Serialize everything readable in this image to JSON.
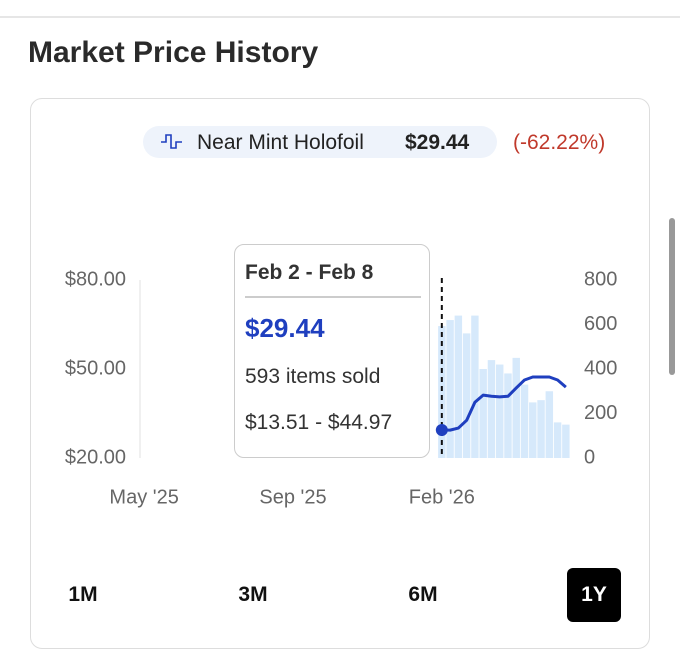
{
  "header": {
    "title": "Market Price History"
  },
  "legend": {
    "label": "Near Mint Holofoil",
    "price": "$29.44",
    "change": "(-62.22%)"
  },
  "tooltip": {
    "date": "Feb 2 - Feb 8",
    "price": "$29.44",
    "sold": "593 items sold",
    "range": "$13.51 - $44.97"
  },
  "ranges": [
    {
      "label": "1M",
      "active": false
    },
    {
      "label": "3M",
      "active": false
    },
    {
      "label": "6M",
      "active": false
    },
    {
      "label": "1Y",
      "active": true
    }
  ],
  "chart_data": {
    "type": "line",
    "categories": [
      "May '25",
      null,
      null,
      null,
      null,
      null,
      null,
      null,
      null,
      null,
      null,
      null,
      null,
      null,
      null,
      null,
      null,
      null,
      "Sep '25",
      null,
      null,
      null,
      null,
      null,
      null,
      null,
      null,
      null,
      null,
      null,
      null,
      null,
      null,
      null,
      null,
      null,
      "Feb '26",
      null,
      null,
      null,
      null,
      null,
      null,
      null,
      null,
      null,
      null,
      null,
      null,
      null,
      null,
      null
    ],
    "series": [
      {
        "name": "Near Mint Holofoil",
        "color": "#1f3fbf",
        "values": [
          null,
          null,
          null,
          null,
          null,
          null,
          null,
          null,
          null,
          null,
          null,
          null,
          null,
          null,
          null,
          null,
          null,
          null,
          null,
          null,
          null,
          null,
          null,
          null,
          null,
          null,
          null,
          null,
          null,
          null,
          null,
          null,
          null,
          null,
          null,
          null,
          29.44,
          29.4,
          30.1,
          32.7,
          38.8,
          41.2,
          40.8,
          40.6,
          40.8,
          43.6,
          46.3,
          47.3,
          47.3,
          47.3,
          46.3,
          43.9
        ]
      },
      {
        "type": "bar",
        "axis": "y2",
        "color": "#d6e9fb",
        "values": [
          null,
          null,
          null,
          null,
          null,
          null,
          null,
          null,
          null,
          null,
          null,
          null,
          null,
          null,
          null,
          null,
          null,
          null,
          null,
          null,
          null,
          null,
          null,
          null,
          null,
          null,
          null,
          null,
          null,
          null,
          null,
          null,
          null,
          null,
          null,
          null,
          593,
          620,
          640,
          560,
          640,
          400,
          440,
          420,
          380,
          450,
          330,
          250,
          260,
          300,
          160,
          150
        ]
      }
    ],
    "ylim": [
      20,
      80
    ],
    "yticks": [
      {
        "value": 20,
        "label": "$20.00"
      },
      {
        "value": 50,
        "label": "$50.00"
      },
      {
        "value": 80,
        "label": "$80.00"
      }
    ],
    "y2lim": [
      0,
      800
    ],
    "y2ticks": [
      0,
      200,
      400,
      600,
      800
    ],
    "hover_index": 36
  }
}
